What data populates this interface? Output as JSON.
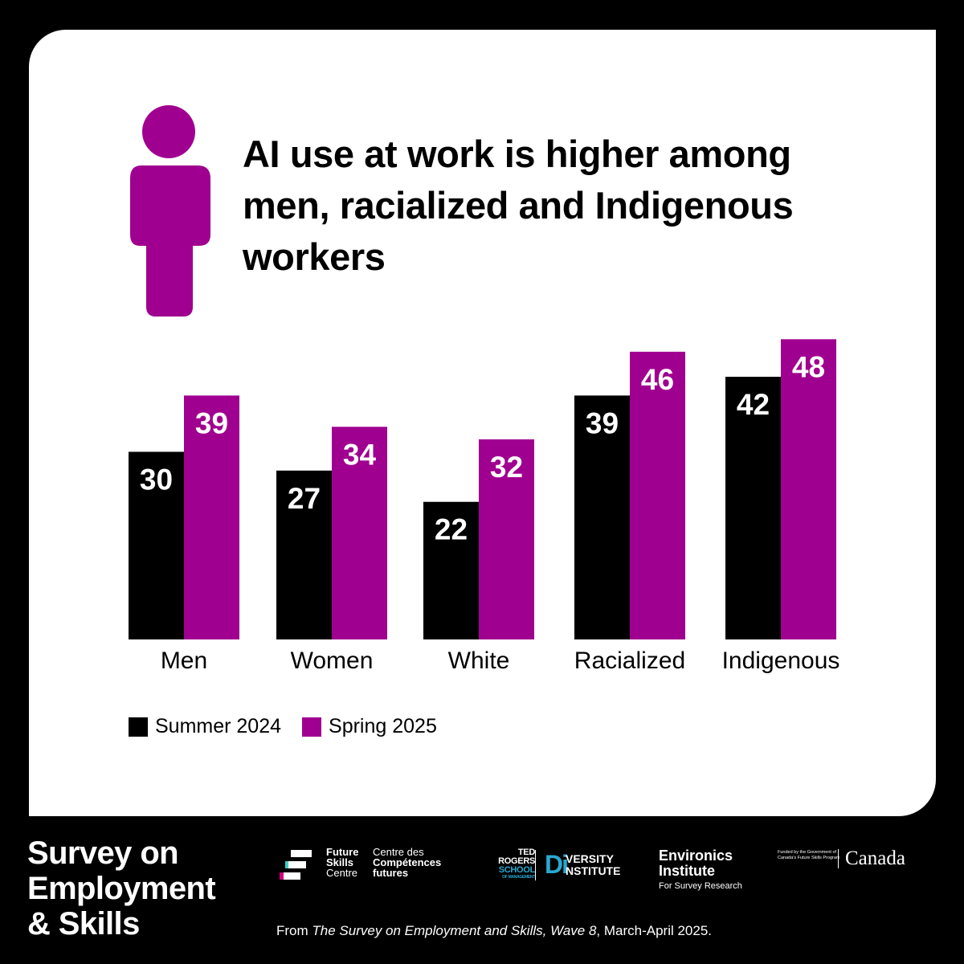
{
  "title": "AI use at work is higher among men, racialized and Indigenous workers",
  "colors": {
    "summer": "#000000",
    "spring": "#a0008f",
    "background": "#000000",
    "card": "#ffffff"
  },
  "icons": {
    "person": "person-icon"
  },
  "chart_data": {
    "type": "bar",
    "title": "AI use at work is higher among men, racialized and Indigenous workers",
    "categories": [
      "Men",
      "Women",
      "White",
      "Racialized",
      "Indigenous"
    ],
    "series": [
      {
        "name": "Summer 2024",
        "values": [
          30,
          27,
          22,
          39,
          42
        ]
      },
      {
        "name": "Spring 2025",
        "values": [
          39,
          34,
          32,
          46,
          48
        ]
      }
    ],
    "xlabel": "",
    "ylabel": "",
    "ylim": [
      0,
      56
    ],
    "grid": false,
    "legend": "bottom-left",
    "data_labels": true
  },
  "legend": {
    "items": [
      {
        "label": "Summer 2024",
        "color": "#000000"
      },
      {
        "label": "Spring 2025",
        "color": "#a0008f"
      }
    ]
  },
  "footer": {
    "title_lines": [
      "Survey on",
      "Employment",
      "& Skills"
    ],
    "source_prefix": "From ",
    "source_title": "The Survey on Employment and Skills, Wave 8",
    "source_suffix": ", March-April 2025."
  },
  "logos": {
    "fsc_en": [
      "Future",
      "Skills",
      "Centre"
    ],
    "fsc_fr": [
      "Centre des",
      "Compétences",
      "futures"
    ],
    "trs": [
      "TED",
      "ROGERS",
      "SCHOOL",
      "OF MANAGEMENT"
    ],
    "di_mark": "Di",
    "di_words": [
      "VERSITY",
      "NSTITUTE"
    ],
    "environics": [
      "Environics",
      "Institute"
    ],
    "environics_sub": "For Survey Research",
    "gov": "Funded by the Government of Canada's Future Skills Program",
    "canada": "Canada"
  }
}
